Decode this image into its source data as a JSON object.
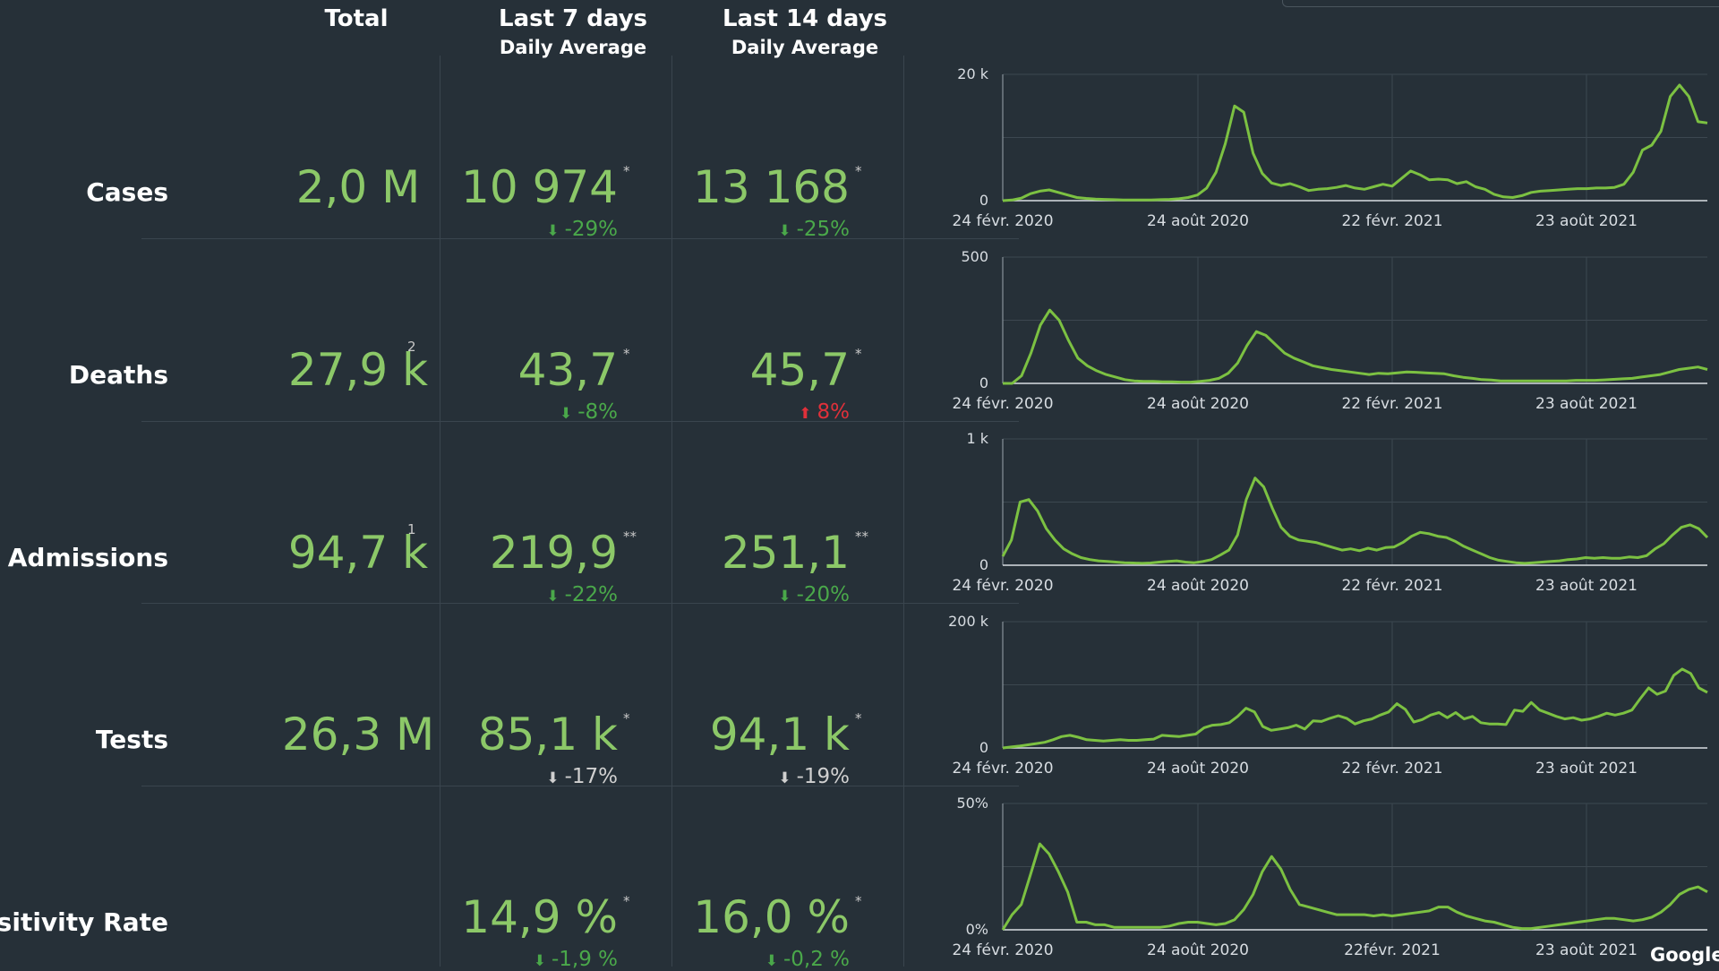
{
  "headers": {
    "total": "Total",
    "last7": "Last 7 days",
    "last14": "Last 14 days",
    "daily_avg": "Daily Average"
  },
  "rows": [
    {
      "label": "Cases",
      "total": "2,0 M",
      "total_sup": "",
      "avg7": "10 974",
      "avg7_sup": "*",
      "delta7": "-29%",
      "delta7_dir": "down",
      "delta7_tone": "good",
      "avg14": "13 168",
      "avg14_sup": "*",
      "delta14": "-25%",
      "delta14_dir": "down",
      "delta14_tone": "good"
    },
    {
      "label": "Deaths",
      "total": "27,9 k",
      "total_sup": "2",
      "avg7": "43,7",
      "avg7_sup": "*",
      "delta7": "-8%",
      "delta7_dir": "down",
      "delta7_tone": "good",
      "avg14": "45,7",
      "avg14_sup": "*",
      "delta14": "8%",
      "delta14_dir": "up",
      "delta14_tone": "bad"
    },
    {
      "label": "tal Admissions",
      "total": "94,7 k",
      "total_sup": "1",
      "avg7": "219,9",
      "avg7_sup": "**",
      "delta7": "-22%",
      "delta7_dir": "down",
      "delta7_tone": "good",
      "avg14": "251,1",
      "avg14_sup": "**",
      "delta14": "-20%",
      "delta14_dir": "down",
      "delta14_tone": "good"
    },
    {
      "label": "Tests",
      "total": "26,3 M",
      "total_sup": "",
      "avg7": "85,1 k",
      "avg7_sup": "*",
      "delta7": "-17%",
      "delta7_dir": "down",
      "delta7_tone": "neutral",
      "avg14": "94,1 k",
      "avg14_sup": "*",
      "delta14": "-19%",
      "delta14_dir": "down",
      "delta14_tone": "neutral"
    },
    {
      "label": "Positivity Rate",
      "total": "",
      "total_sup": "",
      "avg7": "14,9 %",
      "avg7_sup": "*",
      "delta7": "-1,9 %",
      "delta7_dir": "down",
      "delta7_tone": "good",
      "avg14": "16,0 %",
      "avg14_sup": "*",
      "delta14": "-0,2 %",
      "delta14_dir": "down",
      "delta14_tone": "good"
    }
  ],
  "colors": {
    "line": "#7cc142",
    "good": "#4aa84a",
    "bad": "#e0303a",
    "value": "#8cc868"
  },
  "footer": "Google D",
  "chart_data": [
    {
      "type": "line",
      "series": "Cases",
      "ylim": [
        0,
        20000
      ],
      "yticks": [
        "0",
        "20 k"
      ],
      "xticks": [
        "24 févr. 2020",
        "24 août 2020",
        "22 févr. 2021",
        "23 août 2021"
      ],
      "values": [
        0,
        100,
        400,
        1100,
        1500,
        1700,
        1300,
        900,
        500,
        350,
        250,
        200,
        150,
        120,
        100,
        100,
        120,
        150,
        200,
        300,
        500,
        900,
        2000,
        4500,
        9000,
        15000,
        14000,
        7500,
        4300,
        2800,
        2400,
        2700,
        2200,
        1600,
        1800,
        1900,
        2100,
        2400,
        2000,
        1800,
        2200,
        2600,
        2300,
        3500,
        4700,
        4100,
        3300,
        3400,
        3300,
        2700,
        3000,
        2200,
        1800,
        1000,
        600,
        500,
        800,
        1300,
        1500,
        1600,
        1700,
        1800,
        1900,
        1900,
        2000,
        2000,
        2100,
        2600,
        4500,
        8000,
        8800,
        11000,
        16500,
        18300,
        16500,
        12500,
        12300
      ]
    },
    {
      "type": "line",
      "series": "Deaths",
      "ylim": [
        0,
        500
      ],
      "yticks": [
        "0",
        "500"
      ],
      "xticks": [
        "24 févr. 2020",
        "24 août 2020",
        "22 févr. 2021",
        "23 août 2021"
      ],
      "values": [
        0,
        0,
        30,
        120,
        230,
        290,
        250,
        170,
        100,
        70,
        50,
        35,
        25,
        15,
        10,
        8,
        8,
        6,
        6,
        5,
        5,
        8,
        12,
        20,
        40,
        80,
        150,
        205,
        190,
        155,
        120,
        100,
        85,
        70,
        62,
        55,
        50,
        45,
        40,
        35,
        40,
        38,
        42,
        45,
        44,
        42,
        40,
        38,
        30,
        24,
        20,
        15,
        13,
        10,
        10,
        10,
        10,
        10,
        10,
        10,
        10,
        12,
        12,
        12,
        14,
        16,
        18,
        20,
        25,
        30,
        35,
        45,
        55,
        60,
        65,
        55
      ]
    },
    {
      "type": "line",
      "series": "Hospital Admissions",
      "ylim": [
        0,
        1000
      ],
      "yticks": [
        "0",
        "1 k"
      ],
      "xticks": [
        "24 févr. 2020",
        "24 août 2020",
        "22 févr. 2021",
        "23 août 2021"
      ],
      "values": [
        70,
        200,
        500,
        520,
        430,
        290,
        200,
        130,
        90,
        60,
        45,
        35,
        30,
        25,
        20,
        18,
        15,
        18,
        25,
        30,
        35,
        25,
        20,
        30,
        45,
        80,
        120,
        240,
        520,
        690,
        620,
        450,
        300,
        230,
        200,
        190,
        180,
        160,
        140,
        120,
        130,
        115,
        135,
        120,
        140,
        145,
        180,
        230,
        260,
        250,
        230,
        220,
        190,
        150,
        120,
        90,
        60,
        40,
        30,
        20,
        15,
        20,
        25,
        30,
        35,
        45,
        50,
        60,
        55,
        60,
        55,
        55,
        65,
        60,
        75,
        130,
        170,
        240,
        300,
        320,
        290,
        220
      ]
    },
    {
      "type": "line",
      "series": "Tests",
      "ylim": [
        0,
        200000
      ],
      "yticks": [
        "0",
        "200 k"
      ],
      "xticks": [
        "24 févr. 2020",
        "24 août 2020",
        "22 févr. 2021",
        "23 août 2021"
      ],
      "values": [
        0,
        1500,
        3000,
        5000,
        7000,
        9000,
        13000,
        18000,
        20000,
        17000,
        13000,
        12000,
        11000,
        12000,
        13000,
        12000,
        12000,
        13000,
        14000,
        20000,
        19000,
        18000,
        20000,
        22000,
        32000,
        36000,
        37000,
        40000,
        50000,
        63000,
        57000,
        34000,
        28000,
        30000,
        32000,
        36000,
        30000,
        43000,
        42000,
        47000,
        51000,
        47000,
        38000,
        43000,
        46000,
        52000,
        57000,
        70000,
        61000,
        41000,
        45000,
        52000,
        56000,
        48000,
        56000,
        46000,
        50000,
        40000,
        38000,
        38000,
        37000,
        60000,
        58000,
        72000,
        60000,
        55000,
        50000,
        46000,
        48000,
        44000,
        46000,
        50000,
        55000,
        52000,
        55000,
        60000,
        78000,
        95000,
        85000,
        90000,
        115000,
        125000,
        118000,
        95000,
        88000
      ]
    },
    {
      "type": "line",
      "series": "Positivity Rate",
      "ylim": [
        0,
        50
      ],
      "yticks": [
        "0%",
        "50%"
      ],
      "xticks": [
        "24 févr. 2020",
        "24 août 2020",
        "22févr. 2021",
        "23 août 2021"
      ],
      "values": [
        0,
        6,
        10,
        22,
        34,
        30,
        23,
        15,
        3,
        3,
        2,
        2,
        1,
        1,
        1,
        1,
        1,
        1,
        1.5,
        2.5,
        3,
        3,
        2.5,
        2,
        2.5,
        4,
        8,
        14,
        23,
        29,
        24,
        16,
        10,
        9,
        8,
        7,
        6,
        6,
        6,
        6,
        5.5,
        6,
        5.5,
        6,
        6.5,
        7,
        7.5,
        9,
        9,
        7,
        5.5,
        4.5,
        3.5,
        3,
        2,
        1,
        0.5,
        0.5,
        1,
        1.5,
        2,
        2.5,
        3,
        3.5,
        4,
        4.5,
        4.5,
        4,
        3.5,
        4,
        5,
        7,
        10,
        14,
        16,
        17,
        15
      ]
    }
  ]
}
